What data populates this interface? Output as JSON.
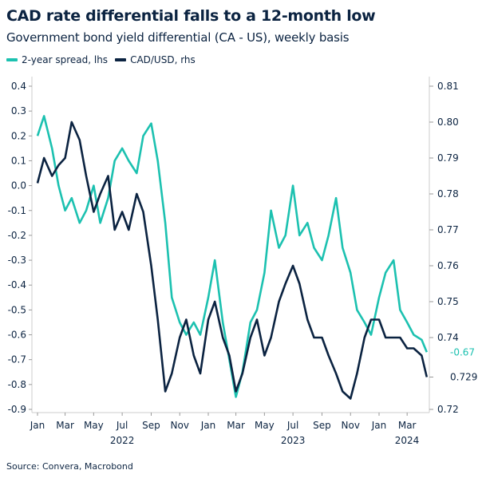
{
  "title": "CAD rate differential falls to a 12-month low",
  "subtitle": "Government bond yield differential (CA - US), weekly basis",
  "source": "Source: Convera, Macrobond",
  "colors": {
    "spread": "#1cc1b0",
    "cad": "#0b2341",
    "text": "#0b2341"
  },
  "chart_data": {
    "type": "line",
    "title": "CAD rate differential falls to a 12-month low",
    "subtitle": "Government bond yield differential (CA - US), weekly basis",
    "left_axis": {
      "range": [
        -0.9,
        0.4
      ],
      "ticks": [
        "0.4",
        "0.3",
        "0.2",
        "0.1",
        "0.0",
        "-0.1",
        "-0.2",
        "-0.3",
        "-0.4",
        "-0.5",
        "-0.6",
        "-0.7",
        "-0.8",
        "-0.9"
      ]
    },
    "right_axis": {
      "range": [
        0.72,
        0.81
      ],
      "ticks": [
        "0.81",
        "0.80",
        "0.79",
        "0.78",
        "0.77",
        "0.76",
        "0.75",
        "0.74",
        "0.72"
      ],
      "last_value_label": "0.729"
    },
    "x_axis": {
      "month_ticks": [
        "Jan",
        "Mar",
        "May",
        "Jul",
        "Sep",
        "Nov",
        "Jan",
        "Mar",
        "May",
        "Jul",
        "Sep",
        "Nov",
        "Jan",
        "Mar"
      ],
      "year_labels": [
        "2022",
        "2023",
        "2024"
      ]
    },
    "grid": false,
    "legend_placement": "top-left",
    "dates": [
      "2022-01-01",
      "2022-01-15",
      "2022-02-01",
      "2022-02-15",
      "2022-03-01",
      "2022-03-15",
      "2022-04-01",
      "2022-04-15",
      "2022-05-01",
      "2022-05-15",
      "2022-06-01",
      "2022-06-15",
      "2022-07-01",
      "2022-07-15",
      "2022-08-01",
      "2022-08-15",
      "2022-09-01",
      "2022-09-15",
      "2022-10-01",
      "2022-10-15",
      "2022-11-01",
      "2022-11-15",
      "2022-12-01",
      "2022-12-15",
      "2023-01-01",
      "2023-01-15",
      "2023-02-01",
      "2023-02-15",
      "2023-03-01",
      "2023-03-15",
      "2023-04-01",
      "2023-04-15",
      "2023-05-01",
      "2023-05-15",
      "2023-06-01",
      "2023-06-15",
      "2023-07-01",
      "2023-07-15",
      "2023-08-01",
      "2023-08-15",
      "2023-09-01",
      "2023-09-15",
      "2023-10-01",
      "2023-10-15",
      "2023-11-01",
      "2023-11-15",
      "2023-12-01",
      "2023-12-15",
      "2024-01-01",
      "2024-01-15",
      "2024-02-01",
      "2024-02-15",
      "2024-03-01",
      "2024-03-15",
      "2024-04-01",
      "2024-04-12"
    ],
    "series": [
      {
        "name": "2-year spread, lhs",
        "axis": "left",
        "last_value_label": "-0.67",
        "values": [
          0.2,
          0.28,
          0.15,
          0.0,
          -0.1,
          -0.05,
          -0.15,
          -0.1,
          0.0,
          -0.15,
          -0.05,
          0.1,
          0.15,
          0.1,
          0.05,
          0.2,
          0.25,
          0.1,
          -0.15,
          -0.45,
          -0.55,
          -0.6,
          -0.55,
          -0.6,
          -0.45,
          -0.3,
          -0.55,
          -0.7,
          -0.85,
          -0.75,
          -0.55,
          -0.5,
          -0.35,
          -0.1,
          -0.25,
          -0.2,
          0.0,
          -0.2,
          -0.15,
          -0.25,
          -0.3,
          -0.2,
          -0.05,
          -0.25,
          -0.35,
          -0.5,
          -0.55,
          -0.6,
          -0.45,
          -0.35,
          -0.3,
          -0.5,
          -0.55,
          -0.6,
          -0.62,
          -0.67
        ]
      },
      {
        "name": "CAD/USD, rhs",
        "axis": "right",
        "values": [
          0.783,
          0.79,
          0.785,
          0.788,
          0.79,
          0.8,
          0.795,
          0.785,
          0.775,
          0.78,
          0.785,
          0.77,
          0.775,
          0.77,
          0.78,
          0.775,
          0.76,
          0.745,
          0.725,
          0.73,
          0.74,
          0.745,
          0.735,
          0.73,
          0.745,
          0.75,
          0.74,
          0.735,
          0.725,
          0.73,
          0.74,
          0.745,
          0.735,
          0.74,
          0.75,
          0.755,
          0.76,
          0.755,
          0.745,
          0.74,
          0.74,
          0.735,
          0.73,
          0.725,
          0.723,
          0.73,
          0.74,
          0.745,
          0.745,
          0.74,
          0.74,
          0.74,
          0.737,
          0.737,
          0.735,
          0.729
        ]
      }
    ]
  }
}
